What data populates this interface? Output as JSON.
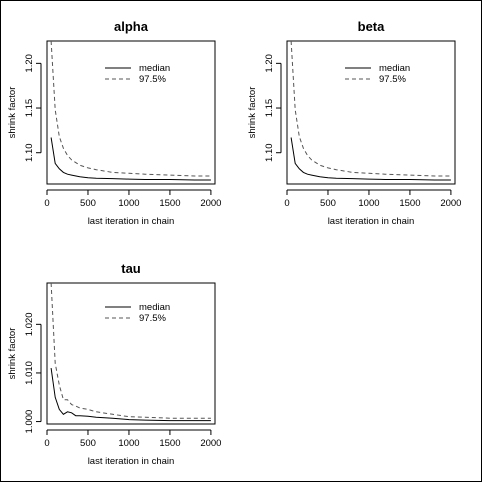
{
  "chart_data": [
    {
      "type": "line",
      "title": "alpha",
      "xlabel": "last iteration in chain",
      "ylabel": "shrink factor",
      "xlim": [
        0,
        2050
      ],
      "ylim": [
        1.065,
        1.225
      ],
      "xticks": [
        0,
        500,
        1000,
        1500,
        2000
      ],
      "yticks": [
        1.1,
        1.15,
        1.2
      ],
      "ytick_labels": [
        "1.10",
        "1.15",
        "1.20"
      ],
      "legend_position": "top-right",
      "grid": false,
      "series": [
        {
          "name": "median",
          "style": "solid",
          "color": "#000000",
          "x": [
            50,
            100,
            150,
            200,
            250,
            300,
            400,
            500,
            600,
            800,
            1000,
            1200,
            1500,
            1800,
            2000
          ],
          "y": [
            1.117,
            1.088,
            1.082,
            1.078,
            1.076,
            1.075,
            1.073,
            1.072,
            1.0715,
            1.071,
            1.0705,
            1.07,
            1.07,
            1.0695,
            1.0695
          ]
        },
        {
          "name": "97.5%",
          "style": "dashed",
          "color": "#555555",
          "x": [
            50,
            100,
            150,
            200,
            250,
            300,
            400,
            500,
            600,
            800,
            1000,
            1200,
            1500,
            1800,
            2000
          ],
          "y": [
            1.225,
            1.148,
            1.118,
            1.105,
            1.097,
            1.092,
            1.086,
            1.083,
            1.081,
            1.078,
            1.077,
            1.076,
            1.075,
            1.074,
            1.074
          ]
        }
      ]
    },
    {
      "type": "line",
      "title": "beta",
      "xlabel": "last iteration in chain",
      "ylabel": "shrink factor",
      "xlim": [
        0,
        2050
      ],
      "ylim": [
        1.065,
        1.225
      ],
      "xticks": [
        0,
        500,
        1000,
        1500,
        2000
      ],
      "yticks": [
        1.1,
        1.15,
        1.2
      ],
      "ytick_labels": [
        "1.10",
        "1.15",
        "1.20"
      ],
      "legend_position": "top-right",
      "grid": false,
      "series": [
        {
          "name": "median",
          "style": "solid",
          "color": "#000000",
          "x": [
            50,
            100,
            150,
            200,
            250,
            300,
            400,
            500,
            600,
            800,
            1000,
            1200,
            1500,
            1800,
            2000
          ],
          "y": [
            1.117,
            1.088,
            1.082,
            1.078,
            1.076,
            1.075,
            1.073,
            1.072,
            1.0715,
            1.071,
            1.0705,
            1.07,
            1.07,
            1.0695,
            1.0695
          ]
        },
        {
          "name": "97.5%",
          "style": "dashed",
          "color": "#555555",
          "x": [
            50,
            100,
            150,
            200,
            250,
            300,
            400,
            500,
            600,
            800,
            1000,
            1200,
            1500,
            1800,
            2000
          ],
          "y": [
            1.225,
            1.148,
            1.118,
            1.105,
            1.097,
            1.092,
            1.086,
            1.083,
            1.081,
            1.078,
            1.077,
            1.076,
            1.075,
            1.074,
            1.074
          ]
        }
      ]
    },
    {
      "type": "line",
      "title": "tau",
      "xlabel": "last iteration in chain",
      "ylabel": "shrink factor",
      "xlim": [
        0,
        2050
      ],
      "ylim": [
        0.9995,
        1.0285
      ],
      "xticks": [
        0,
        500,
        1000,
        1500,
        2000
      ],
      "yticks": [
        1.0,
        1.01,
        1.02
      ],
      "ytick_labels": [
        "1.000",
        "1.010",
        "1.020"
      ],
      "legend_position": "top-right",
      "grid": false,
      "series": [
        {
          "name": "median",
          "style": "solid",
          "color": "#000000",
          "x": [
            50,
            100,
            150,
            200,
            250,
            300,
            350,
            400,
            500,
            600,
            800,
            1000,
            1200,
            1500,
            1800,
            2000
          ],
          "y": [
            1.011,
            1.005,
            1.0025,
            1.0015,
            1.002,
            1.0018,
            1.0012,
            1.0012,
            1.0011,
            1.0009,
            1.0007,
            1.0004,
            1.0003,
            1.0002,
            1.0002,
            1.0002
          ]
        },
        {
          "name": "97.5%",
          "style": "dashed",
          "color": "#555555",
          "x": [
            50,
            100,
            150,
            200,
            250,
            300,
            350,
            400,
            500,
            600,
            800,
            1000,
            1200,
            1500,
            1800,
            2000
          ],
          "y": [
            1.0285,
            1.012,
            1.0075,
            1.0045,
            1.0045,
            1.0035,
            1.0032,
            1.0028,
            1.0025,
            1.002,
            1.0015,
            1.001,
            1.0009,
            1.0007,
            1.0007,
            1.0007
          ]
        }
      ]
    }
  ]
}
